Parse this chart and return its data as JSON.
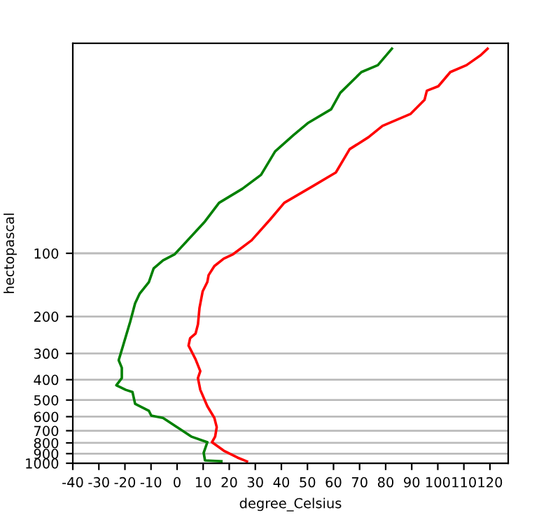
{
  "chart_data": {
    "type": "line",
    "xlabel": "degree_Celsius",
    "ylabel": "hectopascal",
    "log": "y",
    "grid": "y",
    "xlim": [
      -40,
      127
    ],
    "xticks": [
      -40,
      -30,
      -20,
      -10,
      0,
      10,
      20,
      30,
      40,
      50,
      60,
      70,
      80,
      90,
      100,
      110,
      120
    ],
    "ylim": [
      1000,
      10
    ],
    "yticks": [
      100,
      200,
      300,
      400,
      500,
      600,
      700,
      800,
      900,
      1000
    ],
    "series": [
      {
        "color": "#ff0000",
        "x": [
          26.8,
          23.2,
          17.9,
          13.4,
          14.6,
          15.2,
          14.3,
          11.6,
          8.9,
          8.0,
          8.9,
          7.1,
          4.4,
          5.0,
          7.1,
          8.0,
          8.6,
          9.8,
          11.6,
          12.1,
          14.3,
          17.9,
          21.5,
          28.6,
          35.8,
          41.1,
          51.9,
          60.9,
          66.2,
          73.4,
          78.8,
          89.5,
          94.9,
          95.8,
          100.2,
          104.8,
          111.0,
          116.4,
          119.1
        ],
        "values": [
          980,
          940,
          871,
          794,
          746,
          673,
          608,
          535,
          447,
          393,
          364,
          320,
          275,
          254,
          241,
          218,
          182,
          152,
          137,
          127,
          115,
          106,
          101,
          86.7,
          68.8,
          57.5,
          48.0,
          41.2,
          31.9,
          28.0,
          24.7,
          21.7,
          18.6,
          16.8,
          16.0,
          13.7,
          12.7,
          11.4,
          10.6
        ]
      },
      {
        "color": "#008000",
        "x": [
          17.0,
          10.7,
          10.2,
          11.6,
          5.4,
          0.0,
          -5.4,
          -9.9,
          -10.8,
          -16.1,
          -17.1,
          -19.7,
          -23.3,
          -21.2,
          -21.2,
          -22.4,
          -20.7,
          -18.0,
          -16.1,
          -14.4,
          -10.8,
          -9.0,
          -5.4,
          -0.9,
          10.7,
          16.1,
          25.0,
          32.2,
          37.6,
          44.7,
          50.1,
          59.1,
          62.6,
          70.7,
          77.0,
          82.4
        ],
        "values": [
          979,
          969,
          892,
          794,
          746,
          673,
          608,
          593,
          563,
          521,
          458,
          447,
          425,
          393,
          351,
          323,
          275,
          212,
          173,
          156,
          137,
          118,
          108,
          101,
          70.5,
          57.5,
          49.3,
          42.3,
          32.7,
          27.3,
          24.0,
          20.6,
          17.2,
          13.7,
          12.7,
          10.6
        ]
      }
    ]
  }
}
